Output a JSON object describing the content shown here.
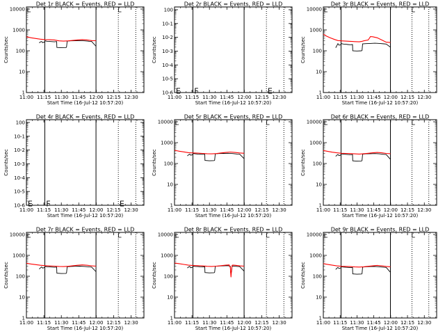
{
  "colors": {
    "events": "#000000",
    "lld": "#ff0000",
    "axis": "#000000",
    "background": "#ffffff"
  },
  "figure": {
    "rows": 3,
    "cols": 3
  },
  "x_axis": {
    "label": "Start Time (16-Jul-12 10:57:20)",
    "tick_labels": [
      "11:00",
      "11:15",
      "11:30",
      "11:45",
      "12:00",
      "12:15",
      "12:30"
    ],
    "tick_minutes": [
      0,
      15,
      30,
      45,
      60,
      75,
      90
    ],
    "range_minutes": [
      0,
      101
    ]
  },
  "y_axis_label": "Counts/sec",
  "ticks": {
    "counts": {
      "labels": [
        "1",
        "10",
        "100",
        "1000",
        "10000"
      ],
      "exponents": [
        0,
        1,
        2,
        3,
        4
      ]
    },
    "tiny": {
      "labels": [
        "10-6",
        "10-5",
        "10-4",
        "10-3",
        "10-2",
        "10-1",
        "100"
      ],
      "exponents": [
        0,
        1,
        2,
        3,
        4,
        5,
        6
      ]
    }
  },
  "markers": {
    "solid_minutes": [
      15.8,
      59.8
    ],
    "dotted_minutes": [
      79.0,
      94.0
    ]
  },
  "chart_data": [
    {
      "type": "line",
      "title": "Det 1r BLACK = Events, RED = LLD",
      "yscale": "log",
      "ticks": "counts",
      "ylim_exp": [
        0,
        4.1
      ],
      "letters": [],
      "series": [
        {
          "name": "Events",
          "color": "#000000",
          "x": [
            11,
            12,
            13,
            14,
            15.8,
            16,
            18,
            20,
            22,
            24,
            26,
            26.2,
            30,
            34,
            34.5,
            35,
            38,
            42,
            46,
            50,
            54,
            56,
            59.8
          ],
          "y": [
            240,
            265,
            280,
            245,
            268,
            300,
            285,
            280,
            275,
            270,
            278,
            145,
            140,
            142,
            150,
            290,
            300,
            305,
            310,
            300,
            285,
            280,
            165
          ]
        },
        {
          "name": "LLD",
          "color": "#ff0000",
          "x": [
            0,
            4,
            8,
            12,
            16,
            20,
            24,
            28,
            32,
            36,
            40,
            44,
            48,
            52,
            56,
            59.8
          ],
          "y": [
            470,
            420,
            390,
            360,
            345,
            340,
            330,
            300,
            290,
            300,
            315,
            330,
            345,
            330,
            310,
            305
          ]
        }
      ]
    },
    {
      "type": "line",
      "title": "Det 2r BLACK = Events, RED = LLD",
      "yscale": "log",
      "ticks": "tiny",
      "ylim_exp": [
        0,
        6.2
      ],
      "letters": [
        {
          "text": "E",
          "x": 0.5,
          "y": 0.6
        },
        {
          "text": "F",
          "x": 16.3,
          "y": 0.6
        },
        {
          "text": "E",
          "x": 79.4,
          "y": 0.6
        }
      ],
      "series": []
    },
    {
      "type": "line",
      "title": "Det 3r BLACK = Events, RED = LLD",
      "yscale": "log",
      "ticks": "counts",
      "ylim_exp": [
        0,
        4.1
      ],
      "letters": [],
      "series": [
        {
          "name": "Events",
          "color": "#000000",
          "x": [
            11,
            12,
            13,
            14,
            15.8,
            16,
            18,
            20,
            22,
            24,
            26,
            26.2,
            30,
            34,
            34.5,
            35,
            38,
            42,
            46,
            50,
            54,
            56,
            59.8
          ],
          "y": [
            140,
            175,
            220,
            185,
            200,
            220,
            210,
            205,
            200,
            195,
            200,
            100,
            98,
            100,
            105,
            215,
            220,
            225,
            230,
            225,
            215,
            210,
            150
          ]
        },
        {
          "name": "LLD",
          "color": "#ff0000",
          "x": [
            0,
            3,
            6,
            10,
            13,
            16,
            20,
            24,
            28,
            32,
            34,
            36,
            40,
            42,
            44,
            48,
            52,
            56,
            59.8
          ],
          "y": [
            620,
            500,
            420,
            350,
            310,
            300,
            290,
            285,
            275,
            270,
            280,
            300,
            330,
            480,
            470,
            420,
            330,
            260,
            250
          ]
        }
      ]
    },
    {
      "type": "line",
      "title": "Det 4r BLACK = Events, RED = LLD",
      "yscale": "log",
      "ticks": "tiny",
      "ylim_exp": [
        0,
        6.2
      ],
      "letters": [
        {
          "text": "E",
          "x": 0.5,
          "y": 0.6
        },
        {
          "text": "F",
          "x": 16.3,
          "y": 0.6
        },
        {
          "text": "E",
          "x": 79.4,
          "y": 0.6
        }
      ],
      "series": []
    },
    {
      "type": "line",
      "title": "Det 5r BLACK = Events, RED = LLD",
      "yscale": "log",
      "ticks": "counts",
      "ylim_exp": [
        0,
        4.1
      ],
      "letters": [],
      "series": [
        {
          "name": "Events",
          "color": "#000000",
          "x": [
            11,
            12,
            13,
            14,
            15.8,
            16,
            18,
            20,
            22,
            24,
            26,
            26.2,
            30,
            34,
            34.5,
            35,
            38,
            42,
            46,
            50,
            54,
            56,
            59.8
          ],
          "y": [
            230,
            260,
            280,
            250,
            270,
            300,
            290,
            285,
            280,
            275,
            280,
            140,
            135,
            138,
            145,
            290,
            300,
            305,
            310,
            300,
            285,
            280,
            170
          ]
        },
        {
          "name": "LLD",
          "color": "#ff0000",
          "x": [
            0,
            4,
            8,
            12,
            16,
            20,
            24,
            28,
            32,
            36,
            40,
            44,
            48,
            52,
            56,
            59.8
          ],
          "y": [
            430,
            390,
            360,
            330,
            320,
            315,
            305,
            295,
            290,
            300,
            320,
            340,
            355,
            340,
            320,
            310
          ]
        }
      ]
    },
    {
      "type": "line",
      "title": "Det 6r BLACK = Events, RED = LLD",
      "yscale": "log",
      "ticks": "counts",
      "ylim_exp": [
        0,
        4.1
      ],
      "letters": [],
      "series": [
        {
          "name": "Events",
          "color": "#000000",
          "x": [
            11,
            12,
            13,
            14,
            15.8,
            16,
            18,
            20,
            22,
            24,
            26,
            26.2,
            30,
            34,
            34.5,
            35,
            38,
            42,
            46,
            50,
            54,
            56,
            59.8
          ],
          "y": [
            220,
            250,
            270,
            240,
            260,
            290,
            280,
            275,
            270,
            265,
            270,
            135,
            130,
            132,
            140,
            280,
            290,
            295,
            300,
            290,
            275,
            270,
            160
          ]
        },
        {
          "name": "LLD",
          "color": "#ff0000",
          "x": [
            0,
            4,
            8,
            12,
            16,
            20,
            24,
            28,
            32,
            36,
            40,
            44,
            48,
            52,
            56,
            59.8
          ],
          "y": [
            420,
            380,
            350,
            325,
            310,
            305,
            300,
            290,
            285,
            295,
            310,
            325,
            340,
            325,
            305,
            295
          ]
        }
      ]
    },
    {
      "type": "line",
      "title": "Det 7r BLACK = Events, RED = LLD",
      "yscale": "log",
      "ticks": "counts",
      "ylim_exp": [
        0,
        4.1
      ],
      "letters": [],
      "series": [
        {
          "name": "Events",
          "color": "#000000",
          "x": [
            11,
            12,
            13,
            14,
            15.8,
            16,
            18,
            20,
            22,
            24,
            26,
            26.2,
            30,
            34,
            34.5,
            35,
            38,
            42,
            46,
            50,
            54,
            56,
            59.8
          ],
          "y": [
            220,
            250,
            280,
            245,
            265,
            295,
            285,
            280,
            275,
            270,
            275,
            140,
            135,
            137,
            145,
            285,
            295,
            300,
            305,
            295,
            280,
            275,
            165
          ]
        },
        {
          "name": "LLD",
          "color": "#ff0000",
          "x": [
            0,
            4,
            8,
            12,
            16,
            20,
            24,
            28,
            32,
            36,
            40,
            44,
            48,
            52,
            56,
            59.8
          ],
          "y": [
            420,
            385,
            360,
            335,
            320,
            312,
            305,
            295,
            290,
            300,
            318,
            335,
            350,
            335,
            315,
            305
          ]
        }
      ]
    },
    {
      "type": "line",
      "title": "Det 8r BLACK = Events, RED = LLD",
      "yscale": "log",
      "ticks": "counts",
      "ylim_exp": [
        0,
        4.1
      ],
      "letters": [],
      "series": [
        {
          "name": "Events",
          "color": "#000000",
          "x": [
            11,
            12,
            13,
            14,
            15.8,
            16,
            18,
            20,
            22,
            24,
            26,
            26.2,
            30,
            34,
            34.5,
            35,
            38,
            42,
            46,
            48,
            48.2,
            49,
            49.5,
            50,
            54,
            56,
            59.8
          ],
          "y": [
            250,
            275,
            295,
            255,
            275,
            305,
            295,
            290,
            285,
            280,
            285,
            150,
            145,
            148,
            155,
            300,
            310,
            315,
            320,
            300,
            150,
            160,
            300,
            310,
            295,
            290,
            175
          ]
        },
        {
          "name": "LLD",
          "color": "#ff0000",
          "x": [
            0,
            4,
            8,
            12,
            16,
            20,
            24,
            28,
            32,
            36,
            40,
            44,
            47,
            48,
            48.5,
            49,
            49.5,
            50,
            52,
            56,
            59.8
          ],
          "y": [
            430,
            400,
            370,
            340,
            325,
            320,
            315,
            300,
            295,
            305,
            320,
            340,
            350,
            260,
            90,
            200,
            330,
            345,
            335,
            315,
            305
          ]
        }
      ]
    },
    {
      "type": "line",
      "title": "Det 9r BLACK = Events, RED = LLD",
      "yscale": "log",
      "ticks": "counts",
      "ylim_exp": [
        0,
        4.1
      ],
      "letters": [],
      "series": [
        {
          "name": "Events",
          "color": "#000000",
          "x": [
            11,
            12,
            13,
            14,
            15.8,
            16,
            18,
            20,
            22,
            24,
            26,
            26.2,
            30,
            34,
            34.5,
            35,
            38,
            42,
            46,
            50,
            54,
            56,
            59.8
          ],
          "y": [
            210,
            240,
            265,
            235,
            255,
            285,
            275,
            270,
            265,
            260,
            265,
            130,
            125,
            128,
            135,
            275,
            285,
            290,
            295,
            285,
            270,
            265,
            155
          ]
        },
        {
          "name": "LLD",
          "color": "#ff0000",
          "x": [
            0,
            4,
            8,
            12,
            16,
            20,
            24,
            28,
            32,
            36,
            40,
            44,
            48,
            52,
            56,
            59.8
          ],
          "y": [
            400,
            365,
            340,
            315,
            300,
            295,
            290,
            280,
            275,
            285,
            300,
            315,
            330,
            315,
            295,
            285
          ]
        }
      ]
    }
  ]
}
